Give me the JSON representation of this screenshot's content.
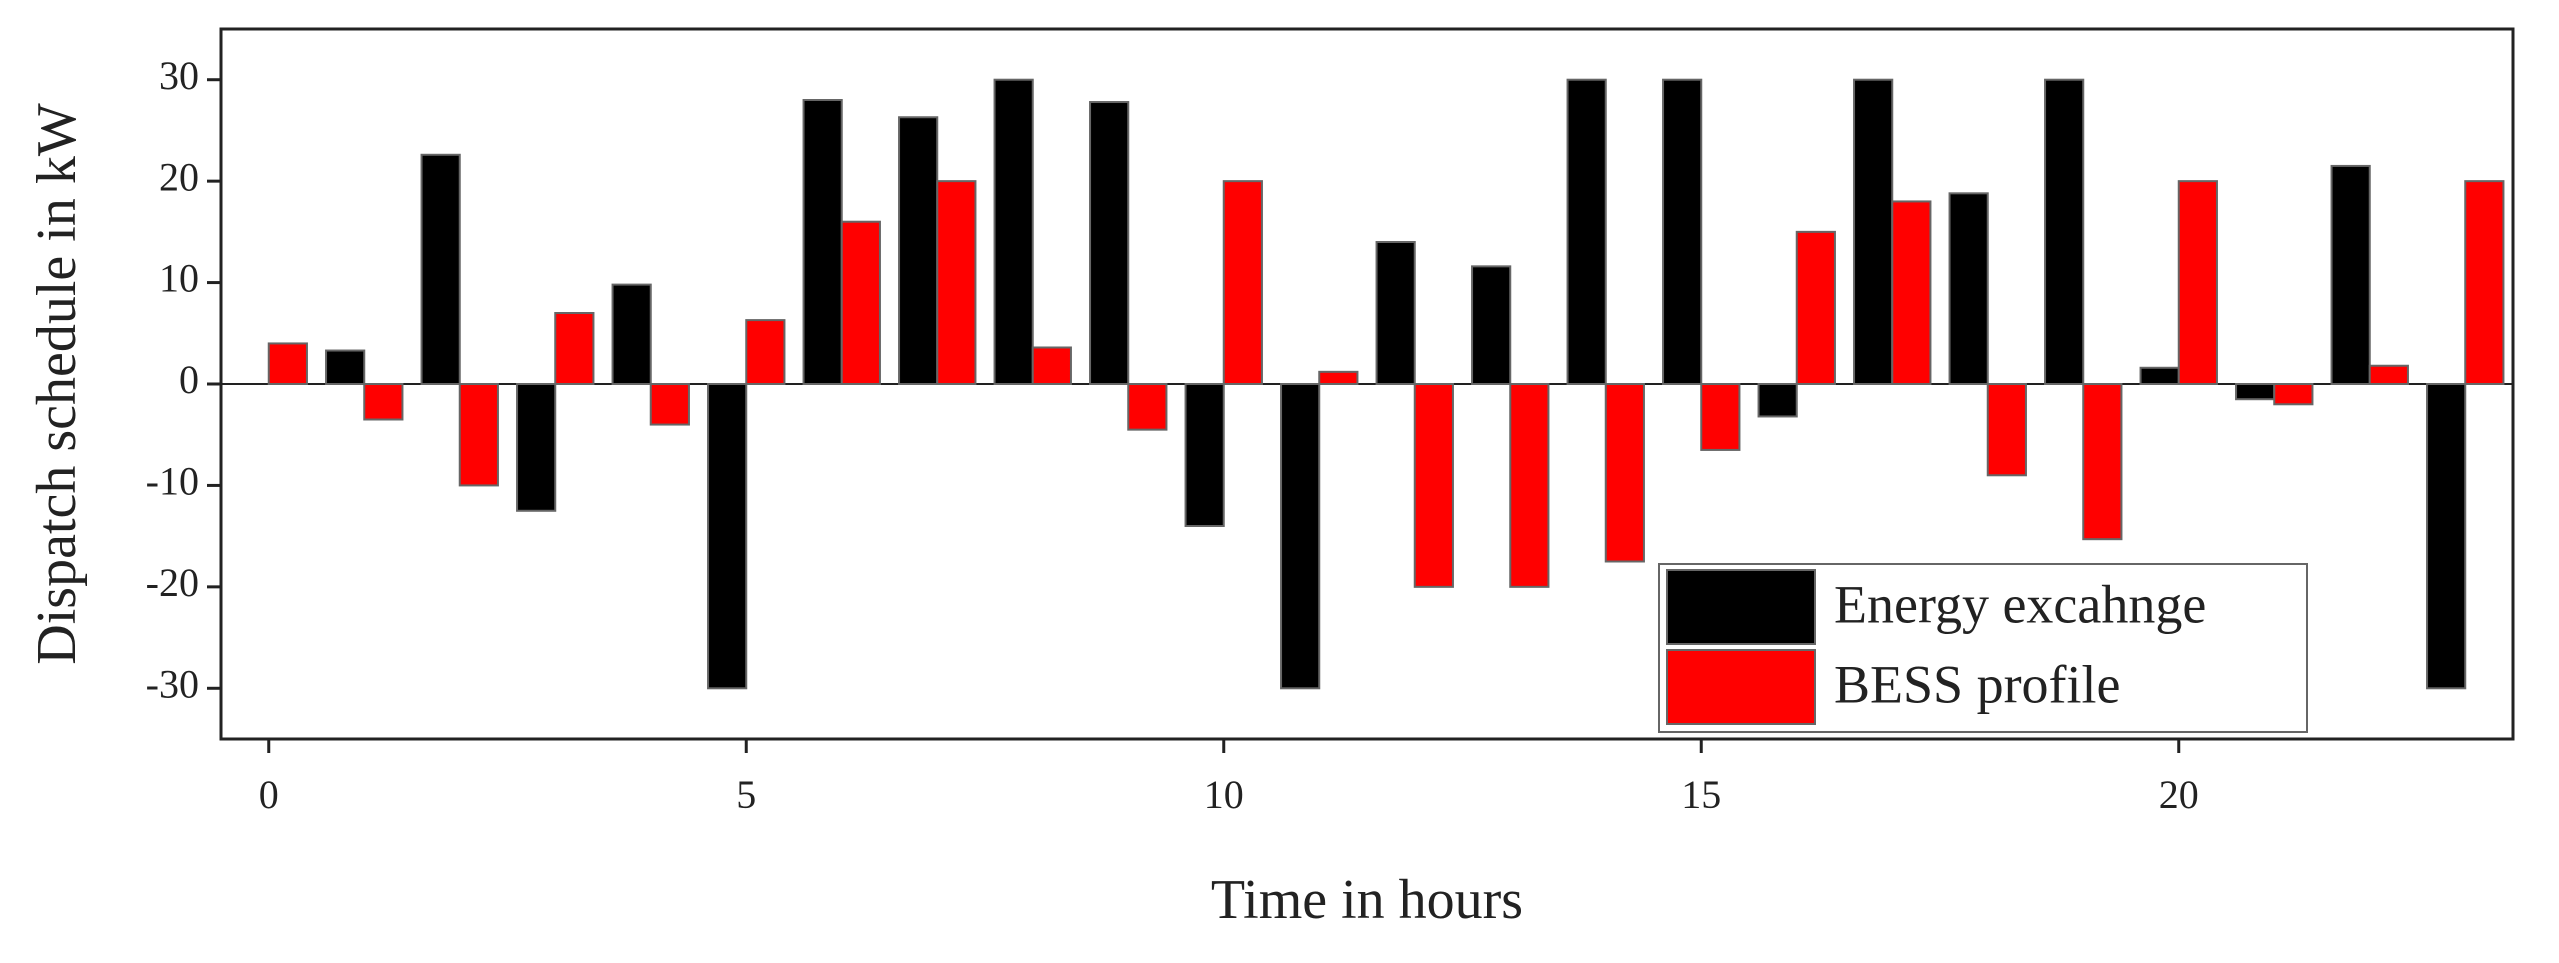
{
  "chart_data": {
    "type": "bar",
    "xlabel": "Time in hours",
    "ylabel": "Dispatch schedule in kW",
    "x": [
      0,
      1,
      2,
      3,
      4,
      5,
      6,
      7,
      8,
      9,
      10,
      11,
      12,
      13,
      14,
      15,
      16,
      17,
      18,
      19,
      20,
      21,
      22,
      23
    ],
    "series": [
      {
        "name": "Energy excahnge",
        "color": "#000000",
        "values": [
          0,
          3.3,
          22.6,
          -12.5,
          9.8,
          -30,
          28,
          26.3,
          30,
          27.8,
          -14,
          -30,
          14,
          11.6,
          30,
          30,
          -3.2,
          30,
          18.8,
          30,
          1.6,
          -1.5,
          21.5,
          -30
        ]
      },
      {
        "name": "BESS profile",
        "color": "#ff0000",
        "values": [
          4,
          -3.5,
          -10,
          7,
          -4,
          6.3,
          16,
          20,
          3.6,
          -4.5,
          20,
          1.2,
          -20,
          -20,
          -17.5,
          -6.5,
          15,
          18,
          -9,
          -15.3,
          20,
          -2,
          1.8,
          20
        ]
      }
    ],
    "xlim": [
      -0.5,
      23.5
    ],
    "xticks": [
      0,
      5,
      10,
      15,
      20
    ],
    "ylim": [
      -35,
      35
    ],
    "yticks": [
      -30,
      -20,
      -10,
      0,
      10,
      20,
      30
    ],
    "legend": "lower right"
  }
}
